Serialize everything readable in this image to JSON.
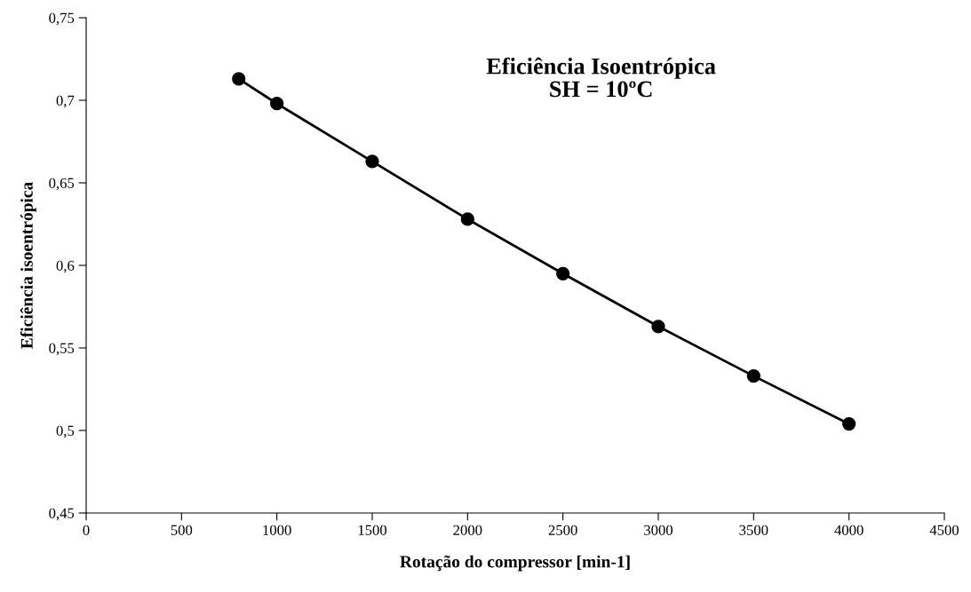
{
  "chart_data": {
    "type": "line",
    "title": "Eficiência Isoentrópica\nSH = 10ºC",
    "xlabel": "Rotação do compressor [min-1]",
    "ylabel": "Eficiência isoentrópica",
    "x": [
      800,
      1000,
      1500,
      2000,
      2500,
      3000,
      3500,
      4000
    ],
    "series": [
      {
        "color": "#000000",
        "values": [
          0.713,
          0.698,
          0.663,
          0.628,
          0.595,
          0.563,
          0.533,
          0.504
        ]
      }
    ],
    "xlim": [
      0,
      4500
    ],
    "xticks": [
      0,
      500,
      1000,
      1500,
      2000,
      2500,
      3000,
      3500,
      4000,
      4500
    ],
    "ylim": [
      0.45,
      0.75
    ],
    "yticks": [
      {
        "value": 0.45,
        "label": "0,45"
      },
      {
        "value": 0.5,
        "label": "0,5"
      },
      {
        "value": 0.55,
        "label": "0,55"
      },
      {
        "value": 0.6,
        "label": "0,6"
      },
      {
        "value": 0.65,
        "label": "0,65"
      },
      {
        "value": 0.7,
        "label": "0,7"
      },
      {
        "value": 0.75,
        "label": "0,75"
      }
    ],
    "grid": false,
    "marker": "circle",
    "line_style": "solid"
  }
}
